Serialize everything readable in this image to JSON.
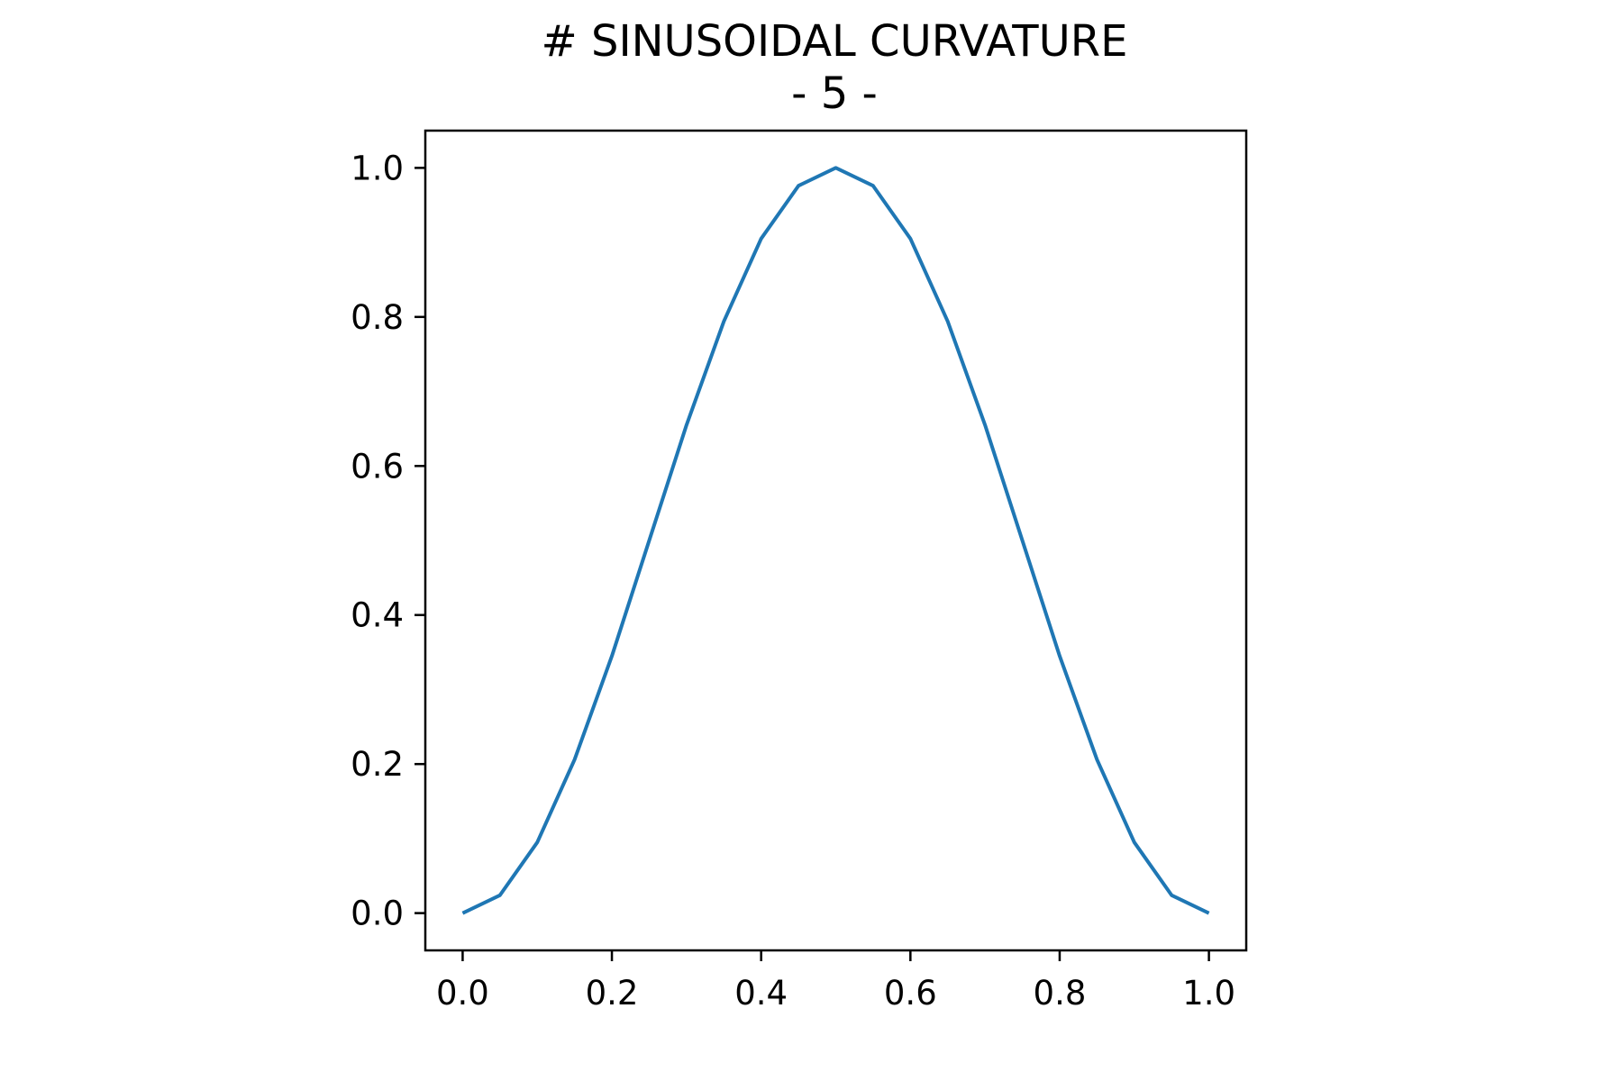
{
  "chart_data": {
    "type": "line",
    "title": "# SINUSOIDAL CURVATURE",
    "subtitle": "- 5 -",
    "xlabel": "",
    "ylabel": "",
    "xlim": [
      -0.05,
      1.05
    ],
    "ylim": [
      -0.05,
      1.05
    ],
    "xticks": [
      0.0,
      0.2,
      0.4,
      0.6,
      0.8,
      1.0
    ],
    "xtick_labels": [
      "0.0",
      "0.2",
      "0.4",
      "0.6",
      "0.8",
      "1.0"
    ],
    "yticks": [
      0.0,
      0.2,
      0.4,
      0.6,
      0.8,
      1.0
    ],
    "ytick_labels": [
      "0.0",
      "0.2",
      "0.4",
      "0.6",
      "0.8",
      "1.0"
    ],
    "grid": false,
    "legend": "none",
    "series": [
      {
        "color": "#1f77b4",
        "x": [
          0.0,
          0.05,
          0.1,
          0.15,
          0.2,
          0.25,
          0.3,
          0.35,
          0.4,
          0.45,
          0.5,
          0.55,
          0.6,
          0.65,
          0.7,
          0.75,
          0.8,
          0.85,
          0.9,
          0.95,
          1.0
        ],
        "y": [
          0.0,
          0.024,
          0.095,
          0.206,
          0.345,
          0.5,
          0.655,
          0.794,
          0.905,
          0.976,
          1.0,
          0.976,
          0.905,
          0.794,
          0.655,
          0.5,
          0.345,
          0.206,
          0.095,
          0.024,
          0.0
        ]
      }
    ]
  }
}
